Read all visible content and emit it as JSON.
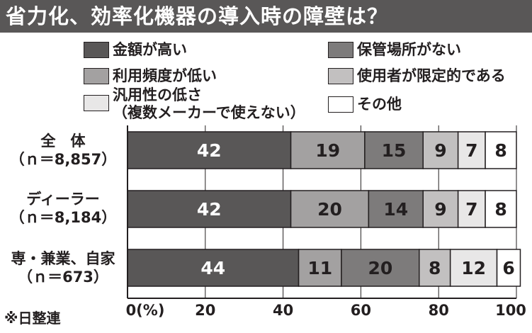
{
  "title": "省力化、効率化機器の導入時の障壁は？",
  "source": "※日整連",
  "colors": {
    "title_bg": "#595757",
    "amount_high": "#595757",
    "storage_none": "#7d7b7b",
    "low_usage": "#a3a1a1",
    "limited_users": "#c2c0c0",
    "low_versatility": "#e8e7e7",
    "other": "#ffffff"
  },
  "legend": [
    {
      "label": "金額が高い",
      "color": "#595757"
    },
    {
      "label": "保管場所がない",
      "color": "#7d7b7b"
    },
    {
      "label": "利用頻度が低い",
      "color": "#a3a1a1"
    },
    {
      "label": "使用者が限定的である",
      "color": "#c2c0c0"
    },
    {
      "label": "汎用性の低さ\n（複数メーカーで使えない）",
      "color": "#e8e7e7"
    },
    {
      "label": "その他",
      "color": "#ffffff"
    }
  ],
  "rows": [
    {
      "line1": "全　体",
      "line2": "（ｎ＝8,857）"
    },
    {
      "line1": "ディーラー",
      "line2": "（ｎ＝8,184）"
    },
    {
      "line1": "専・兼業、自家",
      "line2": "（ｎ＝673）"
    }
  ],
  "chart_data": {
    "type": "bar",
    "orientation": "horizontal",
    "stacked": true,
    "categories": [
      "全　体（ｎ＝8,857）",
      "ディーラー（ｎ＝8,184）",
      "専・兼業、自家（ｎ＝673）"
    ],
    "series": [
      {
        "name": "金額が高い",
        "values": [
          42,
          42,
          44
        ]
      },
      {
        "name": "利用頻度が低い",
        "values": [
          19,
          20,
          11
        ]
      },
      {
        "name": "保管場所がない",
        "values": [
          15,
          14,
          20
        ]
      },
      {
        "name": "使用者が限定的である",
        "values": [
          9,
          9,
          8
        ]
      },
      {
        "name": "汎用性の低さ（複数メーカーで使えない）",
        "values": [
          7,
          7,
          12
        ]
      },
      {
        "name": "その他",
        "values": [
          8,
          8,
          6
        ]
      }
    ],
    "series_colors": [
      "#595757",
      "#a3a1a1",
      "#7d7b7b",
      "#c2c0c0",
      "#e8e7e7",
      "#ffffff"
    ],
    "series_text_colors": [
      "#ffffff",
      "#231f20",
      "#231f20",
      "#231f20",
      "#231f20",
      "#231f20"
    ],
    "xlim": [
      0,
      100
    ],
    "xticks": [
      0,
      20,
      40,
      60,
      80,
      100
    ],
    "xtick_labels": [
      "0(%)",
      "20",
      "40",
      "60",
      "80",
      "100"
    ],
    "grid": true
  }
}
